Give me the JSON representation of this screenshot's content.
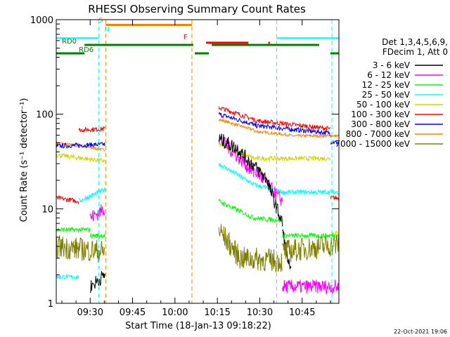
{
  "chart_data": {
    "type": "line",
    "title": "RHESSI Observing Summary Count Rates",
    "xlabel": "Start Time (18-Jan-13 09:18:22)",
    "ylabel": "Count Rate (s⁻¹ detector⁻¹)",
    "y_scale": "log",
    "ylim": [
      1,
      1000
    ],
    "xlim_minutes_after_0918": [
      0,
      100
    ],
    "x_ticks": [
      {
        "label": "09:30",
        "t": 12
      },
      {
        "label": "09:45",
        "t": 27
      },
      {
        "label": "10:00",
        "t": 42
      },
      {
        "label": "10:15",
        "t": 57
      },
      {
        "label": "10:30",
        "t": 72
      },
      {
        "label": "10:45",
        "t": 87
      }
    ],
    "y_ticks": [
      {
        "label": "1",
        "v": 1
      },
      {
        "label": "10",
        "v": 10
      },
      {
        "label": "100",
        "v": 100
      },
      {
        "label": "1000",
        "v": 1000
      }
    ],
    "legend": {
      "placement": "right",
      "header": [
        "Det 1,3,4,5,6,9,",
        "FDecim 1, Att 0"
      ],
      "entries": [
        {
          "label": "3 - 6 keV",
          "color": "#000000"
        },
        {
          "label": "6 - 12 keV",
          "color": "#ff00ff"
        },
        {
          "label": "12 - 25 keV",
          "color": "#00ff00"
        },
        {
          "label": "25 - 50 keV",
          "color": "#00ffff"
        },
        {
          "label": "50 - 100 keV",
          "color": "#d4d400"
        },
        {
          "label": "100 - 300 keV",
          "color": "#ff0000"
        },
        {
          "label": "300 - 800 keV",
          "color": "#0000ff"
        },
        {
          "label": "800 - 7000 keV",
          "color": "#ff8000"
        },
        {
          "label": "7000 - 15000 keV",
          "color": "#808000"
        }
      ]
    },
    "flags": [
      {
        "label": "S",
        "color": "#ff8000",
        "t": 15,
        "level": 900
      },
      {
        "label": "N",
        "color": "#00ffff",
        "t": 17,
        "level": 720
      },
      {
        "label": "F",
        "color": "#ff0000",
        "t": 45,
        "level": 600
      },
      {
        "label": "RD0",
        "color": "#008000",
        "t": 2,
        "level": 540
      },
      {
        "label": "RD6",
        "color": "#008000",
        "t": 8,
        "level": 440
      }
    ],
    "timestamp": "22-Oct-2021 19:06"
  }
}
